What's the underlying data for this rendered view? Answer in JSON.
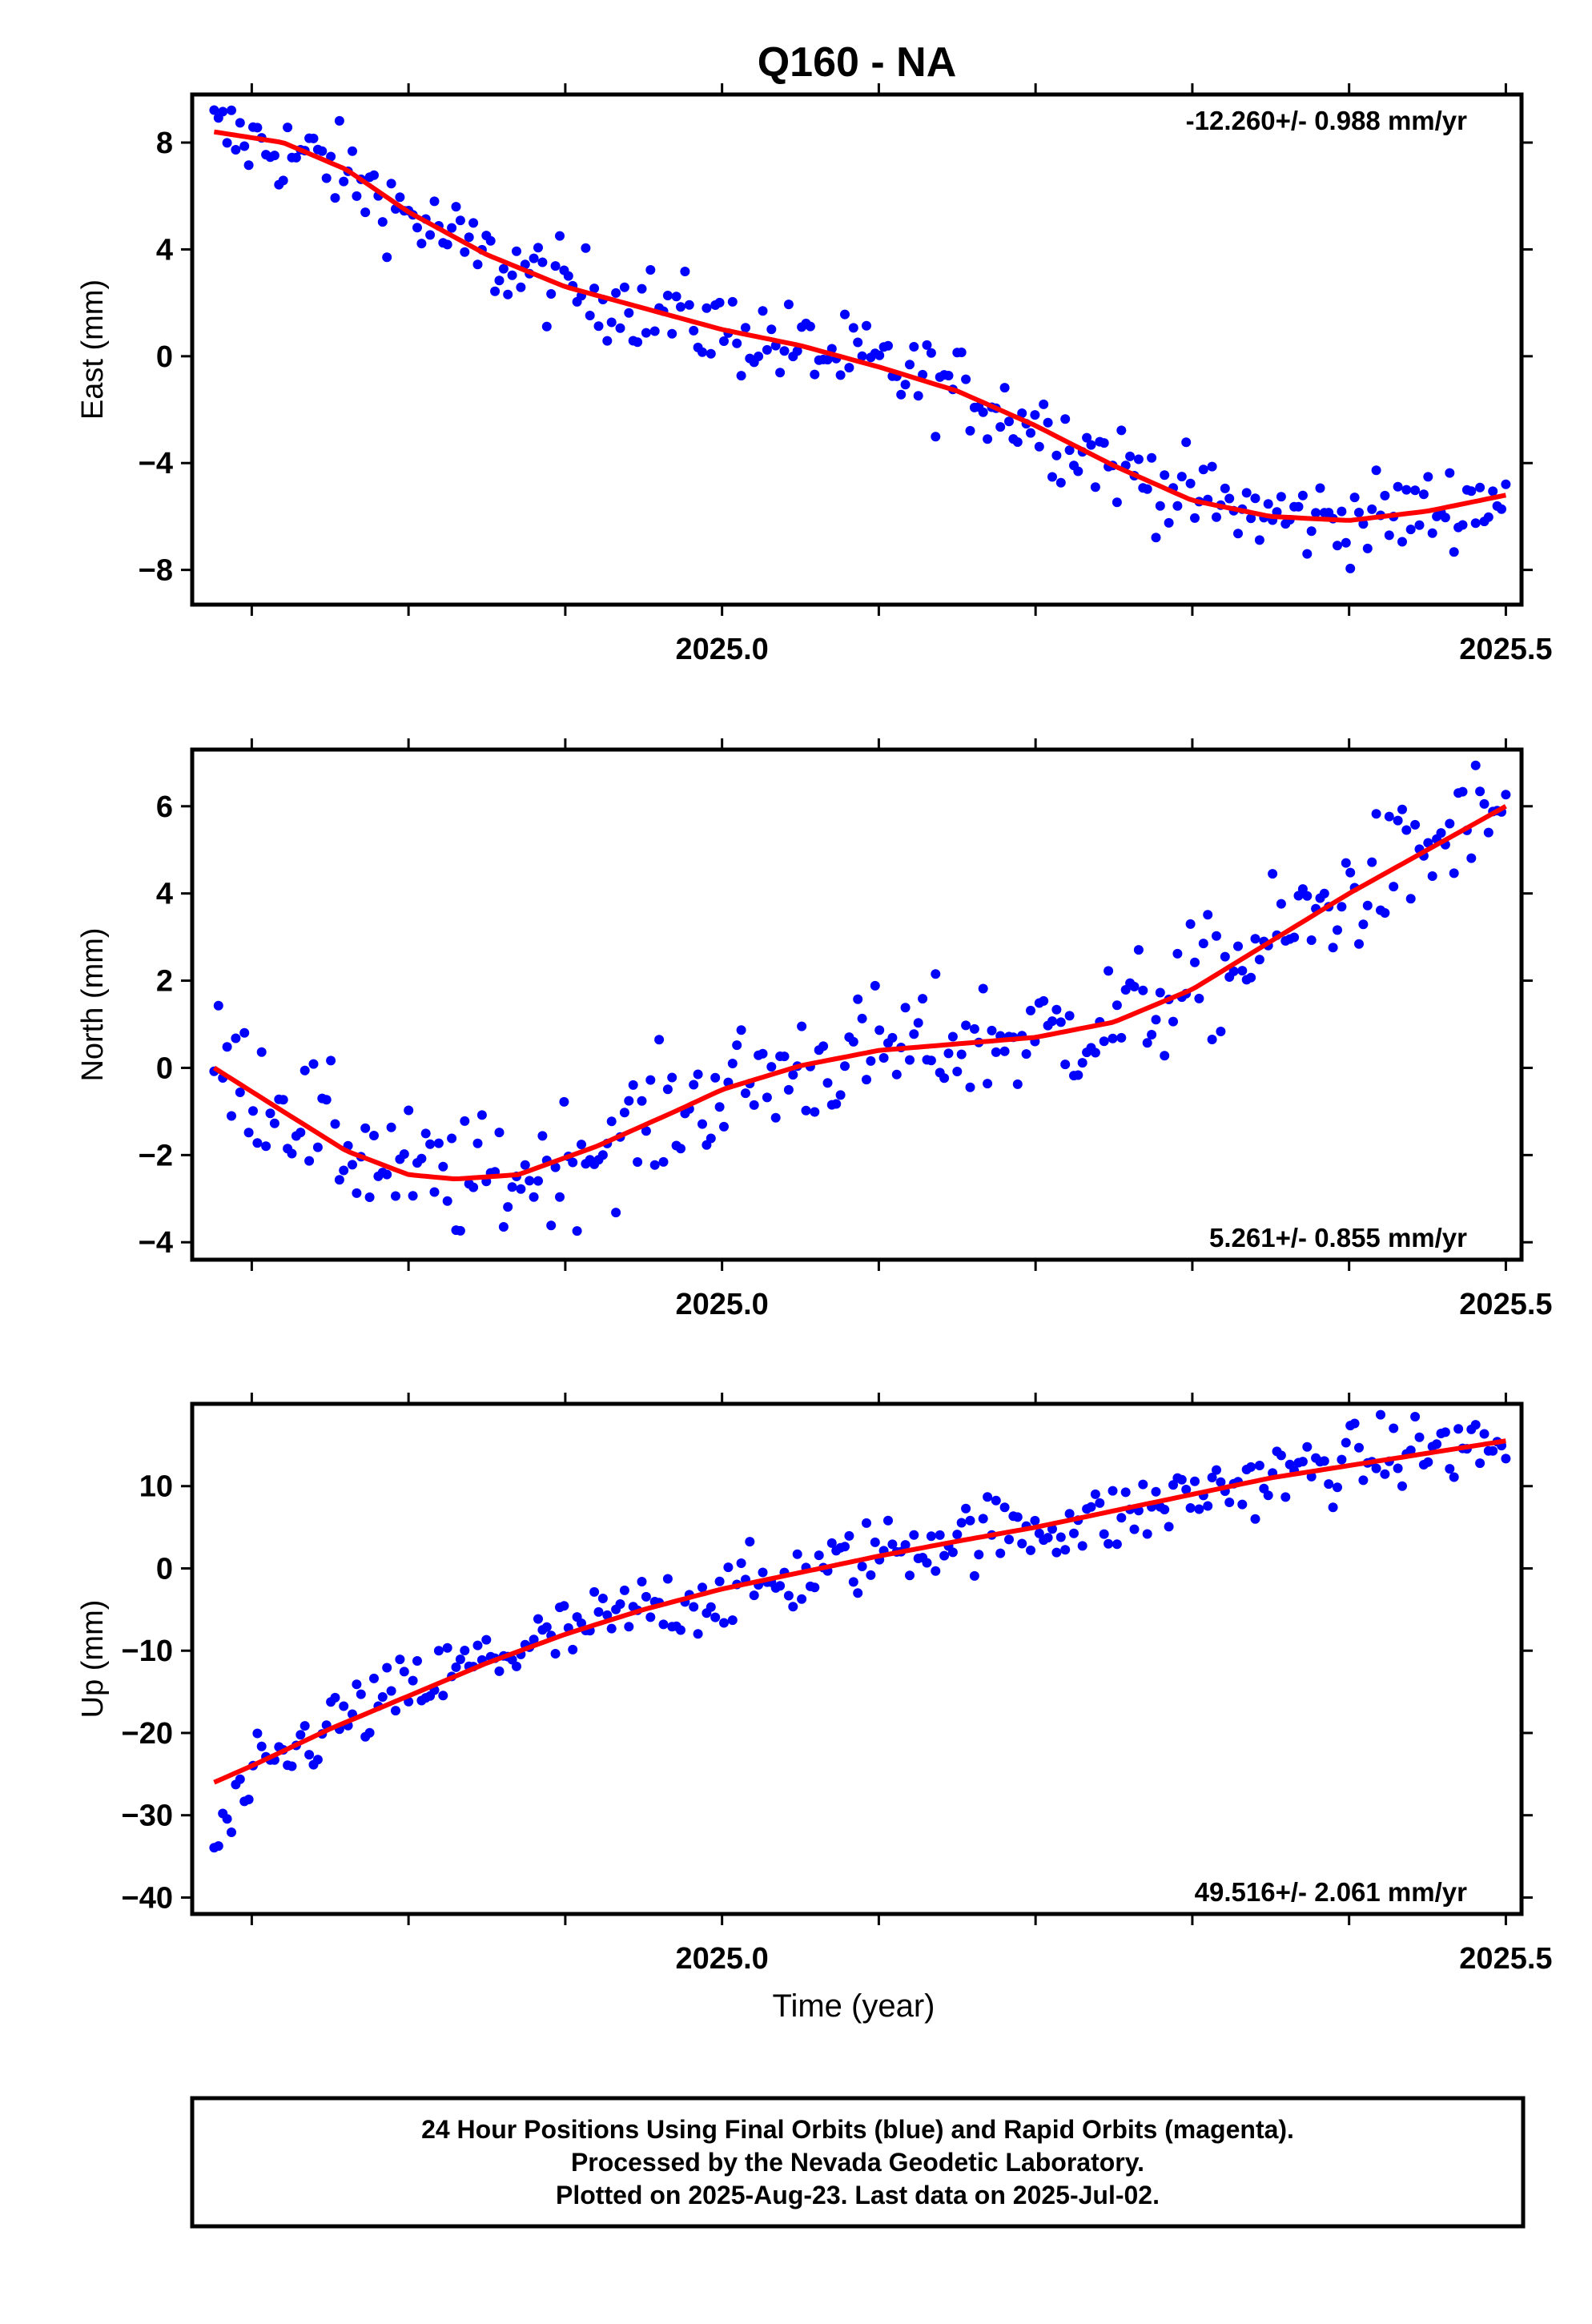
{
  "title": "Q160 - NA",
  "x_axis_label": "Time (year)",
  "footer_lines": [
    "24 Hour Positions Using Final Orbits (blue) and Rapid Orbits (magenta).",
    "Processed by the Nevada Geodetic Laboratory.",
    "Plotted on 2025-Aug-23. Last data on 2025-Jul-02."
  ],
  "colors": {
    "points": "#0000ff",
    "fit": "#ff0000",
    "frame": "#000000"
  },
  "chart_data": [
    {
      "type": "scatter",
      "ylabel": "East (mm)",
      "rate_label": "-12.260+/- 0.988 mm/yr",
      "rate_position": "top-right",
      "xlim": [
        2024.662,
        2025.51
      ],
      "ylim": [
        -9.3,
        9.8
      ],
      "xticks": [
        2025.0,
        2025.5
      ],
      "xtick_labels": [
        "2025.0",
        "2025.5"
      ],
      "yticks": [
        8,
        4,
        0,
        -4,
        -8
      ],
      "ytick_labels": [
        "8",
        "4",
        "0",
        "−4",
        "−8"
      ],
      "grid": false,
      "series": [
        {
          "values_kind": "daily_positions_mm",
          "x_start": 2024.676,
          "x_end": 2025.5,
          "n": 300,
          "trend_points": [
            [
              2024.676,
              8.4
            ],
            [
              2024.75,
              7.2
            ],
            [
              2024.8,
              5.3
            ],
            [
              2024.85,
              3.6
            ],
            [
              2024.9,
              2.6
            ],
            [
              2024.95,
              1.9
            ],
            [
              2025.0,
              1.0
            ],
            [
              2025.05,
              0.3
            ],
            [
              2025.1,
              -0.4
            ],
            [
              2025.15,
              -1.2
            ],
            [
              2025.2,
              -2.5
            ],
            [
              2025.25,
              -4.0
            ],
            [
              2025.3,
              -5.3
            ],
            [
              2025.35,
              -6.0
            ],
            [
              2025.4,
              -6.1
            ],
            [
              2025.45,
              -5.8
            ],
            [
              2025.5,
              -5.2
            ]
          ],
          "scatter_mm": 0.8
        },
        {
          "values_kind": "fit_curve_mm",
          "points": [
            [
              2024.676,
              8.4
            ],
            [
              2024.72,
              8.0
            ],
            [
              2024.76,
              7.0
            ],
            [
              2024.8,
              5.4
            ],
            [
              2024.85,
              3.8
            ],
            [
              2024.9,
              2.6
            ],
            [
              2024.95,
              1.8
            ],
            [
              2025.0,
              1.0
            ],
            [
              2025.05,
              0.4
            ],
            [
              2025.1,
              -0.4
            ],
            [
              2025.15,
              -1.3
            ],
            [
              2025.2,
              -2.6
            ],
            [
              2025.25,
              -4.1
            ],
            [
              2025.3,
              -5.4
            ],
            [
              2025.35,
              -6.0
            ],
            [
              2025.4,
              -6.15
            ],
            [
              2025.45,
              -5.8
            ],
            [
              2025.5,
              -5.2
            ]
          ]
        }
      ]
    },
    {
      "type": "scatter",
      "ylabel": "North (mm)",
      "rate_label": "5.261+/- 0.855 mm/yr",
      "rate_position": "bottom-right",
      "xlim": [
        2024.662,
        2025.51
      ],
      "ylim": [
        -4.4,
        7.3
      ],
      "xticks": [
        2025.0,
        2025.5
      ],
      "xtick_labels": [
        "2025.0",
        "2025.5"
      ],
      "yticks": [
        6,
        4,
        2,
        0,
        -2,
        -4
      ],
      "ytick_labels": [
        "6",
        "4",
        "2",
        "0",
        "−2",
        "−4"
      ],
      "grid": false,
      "series": [
        {
          "values_kind": "daily_positions_mm",
          "x_start": 2024.676,
          "x_end": 2025.5,
          "n": 300,
          "trend_points": [
            [
              2024.676,
              0.1
            ],
            [
              2024.72,
              -0.8
            ],
            [
              2024.76,
              -1.8
            ],
            [
              2024.8,
              -2.4
            ],
            [
              2024.83,
              -2.6
            ],
            [
              2024.87,
              -2.5
            ],
            [
              2024.92,
              -1.8
            ],
            [
              2024.97,
              -1.0
            ],
            [
              2025.0,
              -0.5
            ],
            [
              2025.05,
              0.0
            ],
            [
              2025.1,
              0.4
            ],
            [
              2025.15,
              0.6
            ],
            [
              2025.2,
              0.7
            ],
            [
              2025.25,
              1.1
            ],
            [
              2025.3,
              1.8
            ],
            [
              2025.35,
              2.9
            ],
            [
              2025.4,
              4.0
            ],
            [
              2025.45,
              5.0
            ],
            [
              2025.5,
              6.0
            ]
          ],
          "scatter_mm": 0.7
        },
        {
          "values_kind": "fit_curve_mm",
          "points": [
            [
              2024.676,
              0.0
            ],
            [
              2024.72,
              -1.0
            ],
            [
              2024.76,
              -1.9
            ],
            [
              2024.8,
              -2.45
            ],
            [
              2024.83,
              -2.55
            ],
            [
              2024.87,
              -2.45
            ],
            [
              2024.92,
              -1.8
            ],
            [
              2024.97,
              -1.0
            ],
            [
              2025.0,
              -0.5
            ],
            [
              2025.05,
              0.05
            ],
            [
              2025.1,
              0.4
            ],
            [
              2025.15,
              0.55
            ],
            [
              2025.2,
              0.7
            ],
            [
              2025.25,
              1.05
            ],
            [
              2025.3,
              1.8
            ],
            [
              2025.35,
              2.9
            ],
            [
              2025.4,
              4.0
            ],
            [
              2025.45,
              5.0
            ],
            [
              2025.5,
              6.0
            ]
          ]
        }
      ]
    },
    {
      "type": "scatter",
      "ylabel": "Up (mm)",
      "rate_label": "49.516+/- 2.061 mm/yr",
      "rate_position": "bottom-right",
      "xlim": [
        2024.662,
        2025.51
      ],
      "ylim": [
        -42,
        20
      ],
      "xticks": [
        2025.0,
        2025.5
      ],
      "xtick_labels": [
        "2025.0",
        "2025.5"
      ],
      "yticks": [
        10,
        0,
        -10,
        -20,
        -30,
        -40
      ],
      "ytick_labels": [
        "10",
        "0",
        "−10",
        "−20",
        "−30",
        "−40"
      ],
      "grid": false,
      "series": [
        {
          "values_kind": "daily_positions_mm",
          "x_start": 2024.676,
          "x_end": 2025.5,
          "n": 300,
          "trend_points": [
            [
              2024.676,
              -34
            ],
            [
              2024.7,
              -26
            ],
            [
              2024.75,
              -19
            ],
            [
              2024.8,
              -15
            ],
            [
              2024.85,
              -11
            ],
            [
              2024.9,
              -8
            ],
            [
              2024.95,
              -5
            ],
            [
              2025.0,
              -3
            ],
            [
              2025.05,
              -1
            ],
            [
              2025.1,
              2
            ],
            [
              2025.15,
              4
            ],
            [
              2025.2,
              5
            ],
            [
              2025.25,
              6
            ],
            [
              2025.3,
              9
            ],
            [
              2025.35,
              11
            ],
            [
              2025.4,
              13
            ],
            [
              2025.45,
              14.5
            ],
            [
              2025.5,
              15
            ]
          ],
          "scatter_mm": 2.2
        },
        {
          "values_kind": "fit_curve_mm",
          "points": [
            [
              2024.676,
              -26
            ],
            [
              2024.7,
              -24
            ],
            [
              2024.75,
              -19.5
            ],
            [
              2024.8,
              -15.5
            ],
            [
              2024.85,
              -11.5
            ],
            [
              2024.9,
              -8
            ],
            [
              2024.95,
              -5
            ],
            [
              2025.0,
              -2.5
            ],
            [
              2025.05,
              -0.5
            ],
            [
              2025.1,
              1.5
            ],
            [
              2025.15,
              3.3
            ],
            [
              2025.2,
              5.0
            ],
            [
              2025.25,
              7.0
            ],
            [
              2025.3,
              9.0
            ],
            [
              2025.35,
              11.0
            ],
            [
              2025.4,
              12.5
            ],
            [
              2025.45,
              14.0
            ],
            [
              2025.5,
              15.5
            ]
          ]
        }
      ]
    }
  ]
}
